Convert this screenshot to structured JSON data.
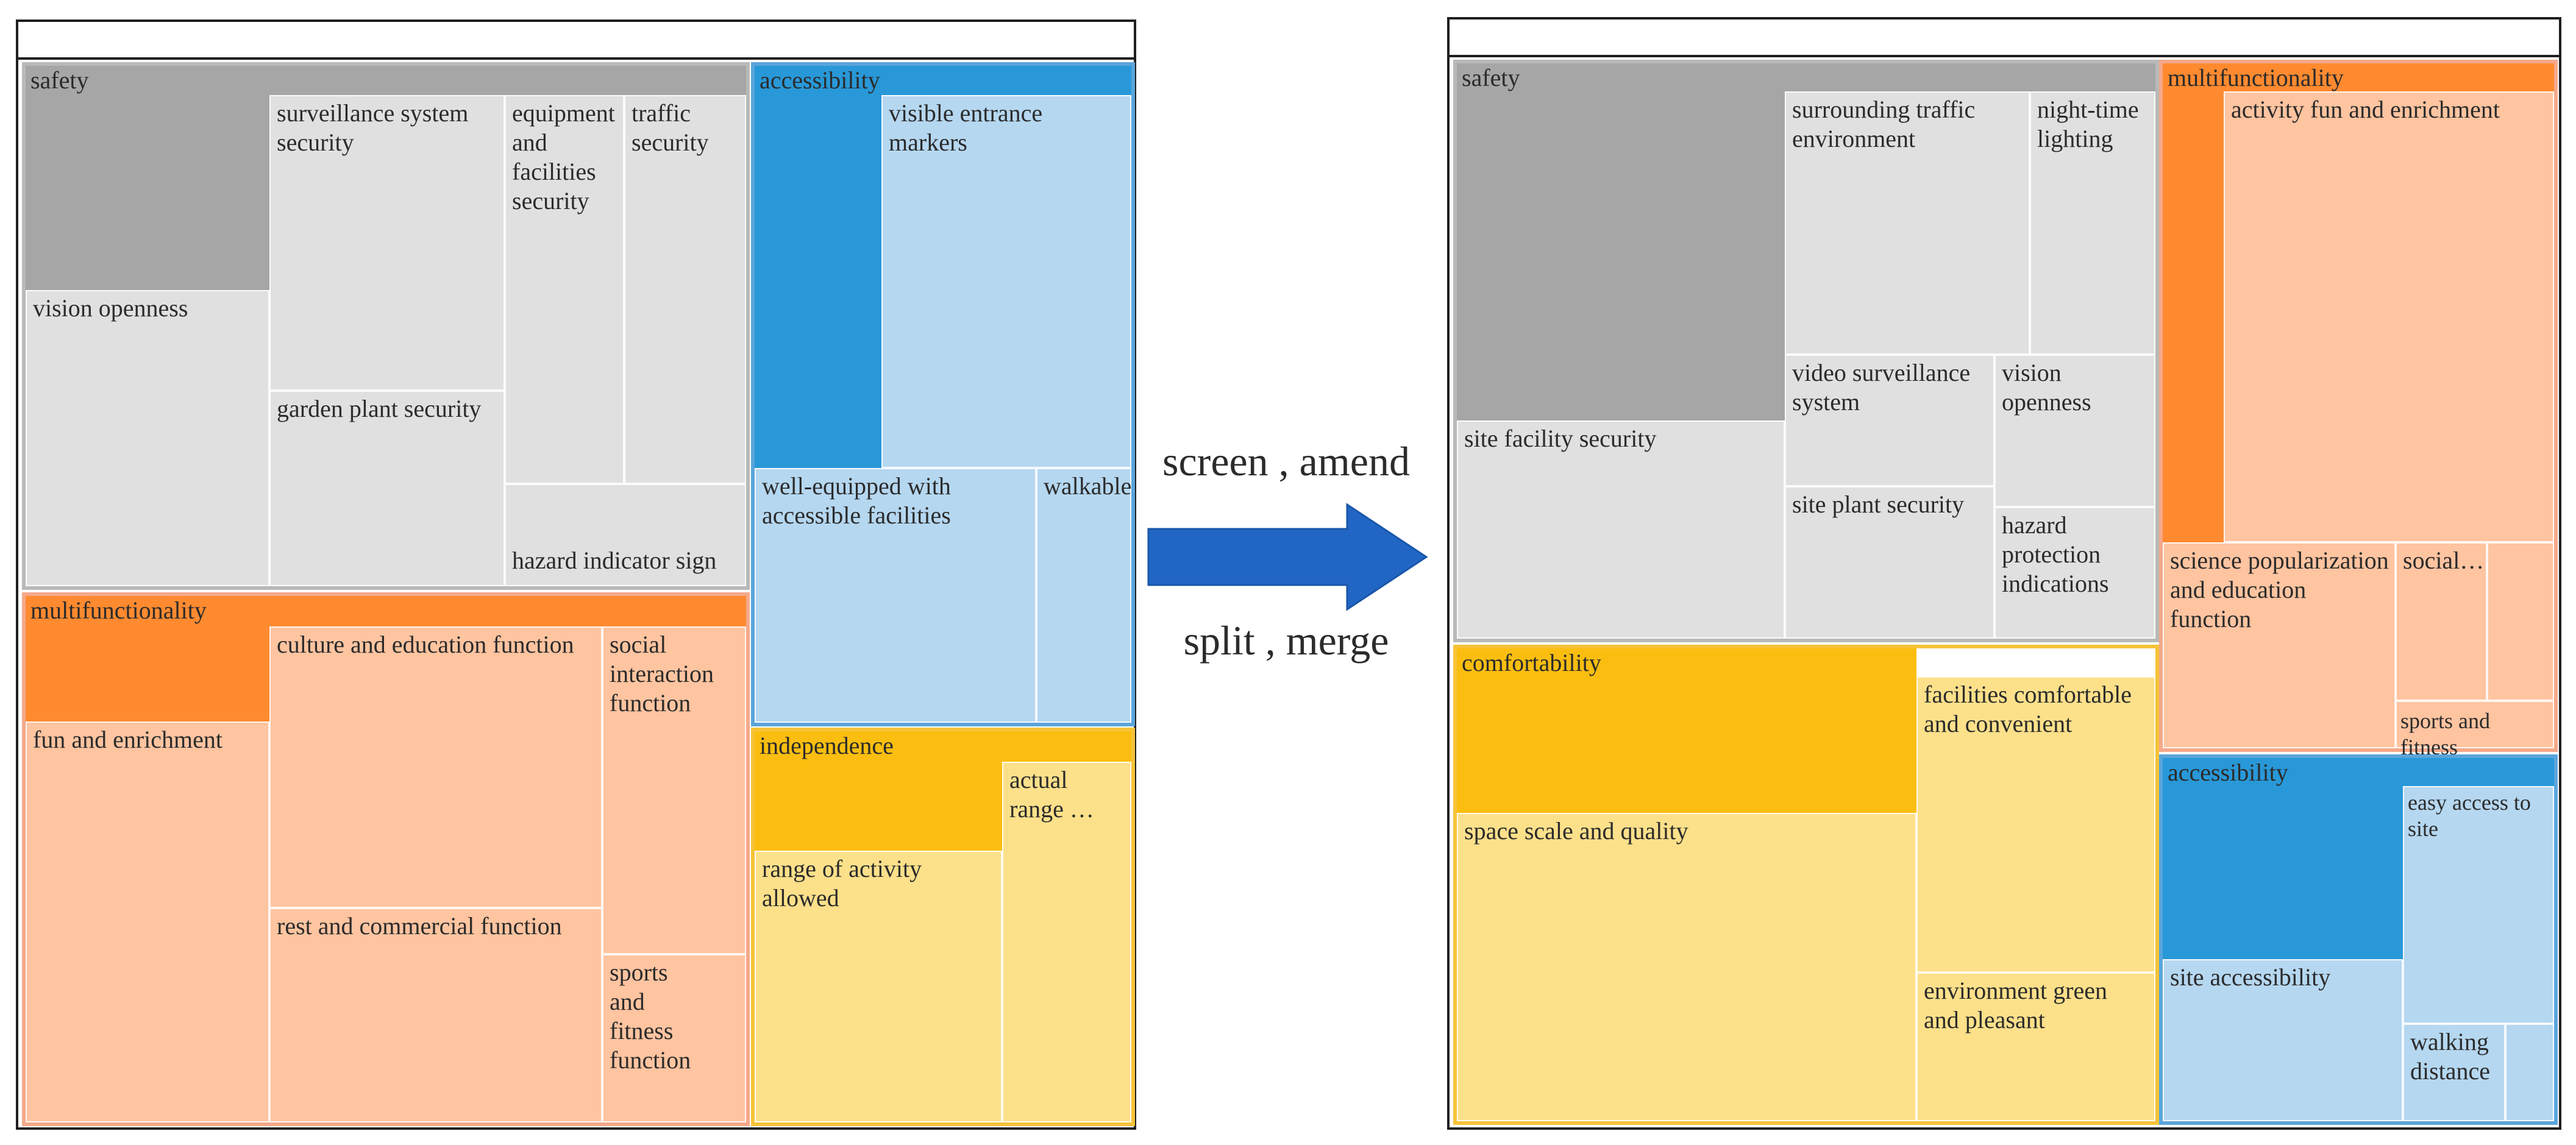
{
  "left_treemap": {
    "groups": {
      "safety": "safety",
      "multifunctionality": "multifunctionality",
      "accessibility": "accessibility",
      "independence": "independence"
    },
    "cells": {
      "vision_openness": "vision openness",
      "surveillance_system_security": "surveillance system security",
      "garden_plant_security": "garden plant security",
      "equipment_facilities_security": "equipment and facilities security",
      "traffic_security": "traffic security",
      "hazard_indicator_sign": "hazard indicator sign",
      "visible_entrance_markers": "visible entrance markers",
      "well_equipped": "well-equipped with accessible facilities",
      "walkable": "walkable",
      "fun_and_enrichment": "fun and enrichment",
      "culture_and_education": "culture and education function",
      "social_interaction": "social interaction function",
      "rest_and_commercial": "rest and commercial function",
      "sports_and_fitness": "sports and fitness function",
      "range_of_activity": "range of activity allowed",
      "actual_range": "actual range …"
    }
  },
  "transform": {
    "top_text": "screen , amend",
    "bottom_text": "split , merge",
    "arrow_color": "#2166c4"
  },
  "right_treemap": {
    "groups": {
      "safety": "safety",
      "multifunctionality": "multifunctionality",
      "comfortability": "comfortability",
      "accessibility": "accessibility"
    },
    "cells": {
      "site_facility_security": "site facility security",
      "surrounding_traffic": "surrounding traffic environment",
      "night_time_lighting": "night-time lighting",
      "video_surveillance": "video surveillance system",
      "vision_openness": "vision openness",
      "site_plant_security": "site plant security",
      "hazard_protection": "hazard protection indications",
      "activity_fun": "activity fun and enrichment",
      "science_popularization": "science popularization and education function",
      "social": "social…",
      "sports_and_fitness": "sports and fitness",
      "space_scale": "space scale and quality",
      "facilities_comfortable": "facilities comfortable and convenient",
      "environment_green": "environment green and pleasant",
      "site_accessibility": "site accessibility",
      "easy_access": "easy access to site",
      "walking_distance": "walking distance"
    }
  },
  "colors": {
    "safety_head": "#a6a6a6",
    "safety_cell": "#e0e0e0",
    "multifunctionality_head": "#ff8a30",
    "multifunctionality_cell": "#ffc4a0",
    "accessibility_head": "#2898d8",
    "accessibility_cell": "#b5d7f0",
    "yellow_head": "#fbbe10",
    "yellow_cell": "#fde08a"
  }
}
